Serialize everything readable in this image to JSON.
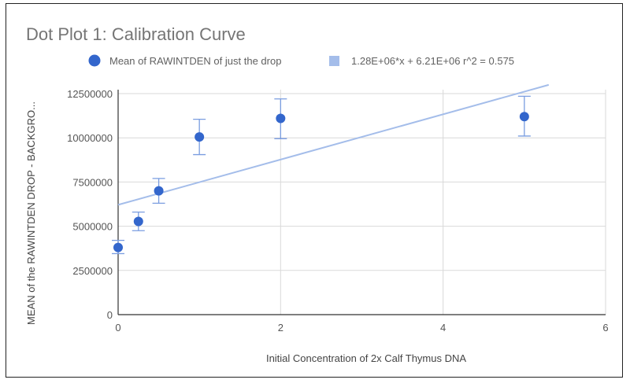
{
  "chart_data": {
    "type": "scatter",
    "title": "Dot Plot 1: Calibration Curve",
    "xlabel": "Initial Concentration of 2x Calf Thymus DNA",
    "ylabel": "MEAN of the RAWINTDEN DROP - BACKGRO...",
    "xlim": [
      0,
      6
    ],
    "ylim": [
      0,
      12500000
    ],
    "xticks": [
      "0",
      "2",
      "4",
      "6"
    ],
    "yticks": [
      "0",
      "2500000",
      "5000000",
      "7500000",
      "10000000",
      "12500000"
    ],
    "grid": true,
    "legend_position": "top",
    "series": [
      {
        "name": "Mean of RAWINTDEN of just the drop",
        "color": "#3366cc",
        "x": [
          0,
          0.25,
          0.5,
          1,
          2,
          5
        ],
        "y": [
          3800000,
          5270000,
          7000000,
          10050000,
          11100000,
          11200000
        ],
        "error_low": [
          3450000,
          4750000,
          6300000,
          9050000,
          9950000,
          10100000
        ],
        "error_high": [
          4200000,
          5800000,
          7700000,
          11050000,
          12200000,
          12350000
        ]
      }
    ],
    "trendline": {
      "name": "1.28E+06*x + 6.21E+06 r^2 = 0.575",
      "slope": 1280000,
      "intercept": 6210000,
      "r2": 0.575,
      "color": "#a4bdea"
    }
  }
}
